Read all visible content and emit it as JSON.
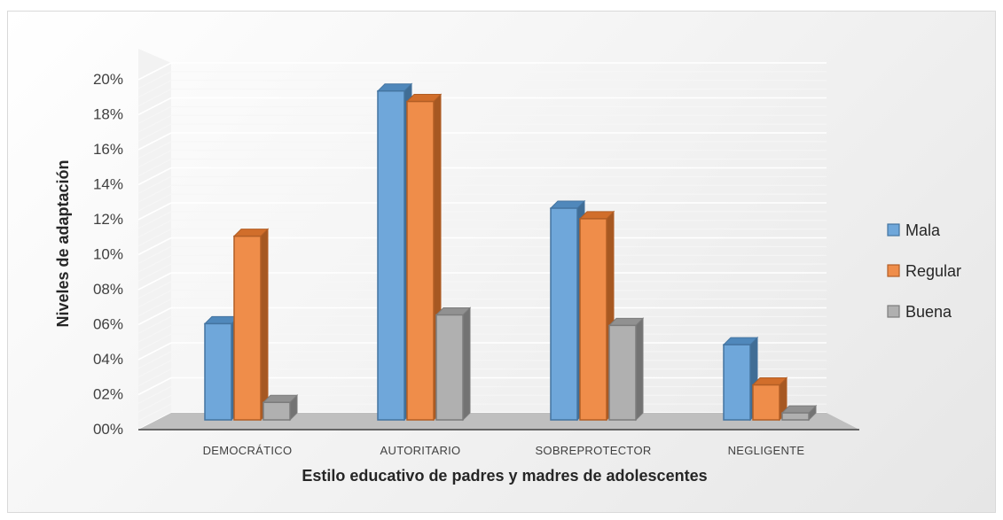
{
  "chart_data": {
    "type": "bar",
    "style": "3d-clustered-column",
    "categories": [
      "DEMOCRÁTICO",
      "AUTORITARIO",
      "SOBREPROTECTOR",
      "NEGLIGENTE"
    ],
    "series": [
      {
        "name": "Mala",
        "values": [
          5.5,
          18.8,
          12.1,
          4.3
        ],
        "color": "#5b9bd5"
      },
      {
        "name": "Regular",
        "values": [
          10.5,
          18.2,
          11.5,
          2.0
        ],
        "color": "#ed7d31"
      },
      {
        "name": "Buena",
        "values": [
          1.0,
          6.0,
          5.4,
          0.4
        ],
        "color": "#a5a5a5"
      }
    ],
    "yticks": [
      "00%",
      "02%",
      "04%",
      "06%",
      "08%",
      "10%",
      "12%",
      "14%",
      "16%",
      "18%",
      "20%"
    ],
    "ylim": [
      0,
      20
    ],
    "xlabel": "Estilo educativo de padres y madres de adolescentes",
    "ylabel": "Niveles de adaptación",
    "legend_position": "right",
    "grid": true
  }
}
